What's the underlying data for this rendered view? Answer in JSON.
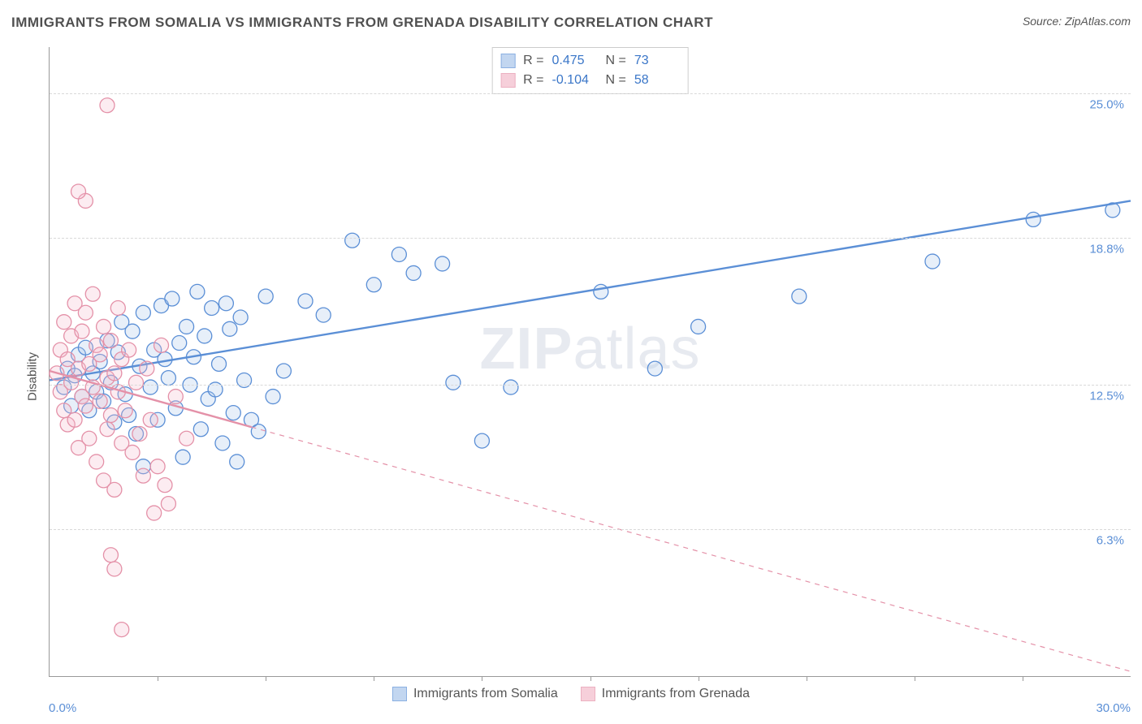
{
  "title": "IMMIGRANTS FROM SOMALIA VS IMMIGRANTS FROM GRENADA DISABILITY CORRELATION CHART",
  "source_label": "Source:",
  "source_name": "ZipAtlas.com",
  "ylabel": "Disability",
  "watermark_bold": "ZIP",
  "watermark_rest": "atlas",
  "chart": {
    "type": "scatter",
    "xlim": [
      0,
      30
    ],
    "ylim": [
      0,
      27
    ],
    "xticks_minor": [
      3,
      6,
      9,
      12,
      15,
      18,
      21,
      24,
      27
    ],
    "xaxis_min_label": "0.0%",
    "xaxis_max_label": "30.0%",
    "ygrid": [
      {
        "y": 6.3,
        "label": "6.3%"
      },
      {
        "y": 12.5,
        "label": "12.5%"
      },
      {
        "y": 18.8,
        "label": "18.8%"
      },
      {
        "y": 25.0,
        "label": "25.0%"
      }
    ],
    "background_color": "#ffffff",
    "grid_color": "#d8d8d8",
    "axis_color": "#999999",
    "marker_radius": 9,
    "marker_stroke_width": 1.3,
    "marker_fill_opacity": 0.28,
    "line_width": 2.4,
    "series": [
      {
        "name": "Immigrants from Somalia",
        "color_stroke": "#5b8fd6",
        "color_fill": "#a9c5ea",
        "R": "0.475",
        "N": "73",
        "regression": {
          "x1": 0,
          "y1": 12.7,
          "x2": 30,
          "y2": 20.4,
          "dashed": false
        },
        "points": [
          [
            0.4,
            12.4
          ],
          [
            0.5,
            13.2
          ],
          [
            0.6,
            11.6
          ],
          [
            0.7,
            12.9
          ],
          [
            0.8,
            13.8
          ],
          [
            0.9,
            12.0
          ],
          [
            1.0,
            14.1
          ],
          [
            1.1,
            11.4
          ],
          [
            1.2,
            13.0
          ],
          [
            1.3,
            12.2
          ],
          [
            1.4,
            13.5
          ],
          [
            1.5,
            11.8
          ],
          [
            1.6,
            14.4
          ],
          [
            1.7,
            12.6
          ],
          [
            1.8,
            10.9
          ],
          [
            1.9,
            13.9
          ],
          [
            2.0,
            15.2
          ],
          [
            2.1,
            12.1
          ],
          [
            2.2,
            11.2
          ],
          [
            2.3,
            14.8
          ],
          [
            2.4,
            10.4
          ],
          [
            2.5,
            13.3
          ],
          [
            2.6,
            15.6
          ],
          [
            2.6,
            9.0
          ],
          [
            2.8,
            12.4
          ],
          [
            2.9,
            14.0
          ],
          [
            3.0,
            11.0
          ],
          [
            3.1,
            15.9
          ],
          [
            3.2,
            13.6
          ],
          [
            3.3,
            12.8
          ],
          [
            3.4,
            16.2
          ],
          [
            3.5,
            11.5
          ],
          [
            3.6,
            14.3
          ],
          [
            3.7,
            9.4
          ],
          [
            3.8,
            15.0
          ],
          [
            3.9,
            12.5
          ],
          [
            4.0,
            13.7
          ],
          [
            4.1,
            16.5
          ],
          [
            4.2,
            10.6
          ],
          [
            4.3,
            14.6
          ],
          [
            4.4,
            11.9
          ],
          [
            4.5,
            15.8
          ],
          [
            4.6,
            12.3
          ],
          [
            4.7,
            13.4
          ],
          [
            4.8,
            10.0
          ],
          [
            4.9,
            16.0
          ],
          [
            5.0,
            14.9
          ],
          [
            5.1,
            11.3
          ],
          [
            5.2,
            9.2
          ],
          [
            5.3,
            15.4
          ],
          [
            5.4,
            12.7
          ],
          [
            5.6,
            11.0
          ],
          [
            5.8,
            10.5
          ],
          [
            6.0,
            16.3
          ],
          [
            6.2,
            12.0
          ],
          [
            6.5,
            13.1
          ],
          [
            7.1,
            16.1
          ],
          [
            7.6,
            15.5
          ],
          [
            8.4,
            18.7
          ],
          [
            9.0,
            16.8
          ],
          [
            9.7,
            18.1
          ],
          [
            10.1,
            17.3
          ],
          [
            10.9,
            17.7
          ],
          [
            11.2,
            12.6
          ],
          [
            12.0,
            10.1
          ],
          [
            12.8,
            12.4
          ],
          [
            15.3,
            16.5
          ],
          [
            16.8,
            13.2
          ],
          [
            18.0,
            15.0
          ],
          [
            20.8,
            16.3
          ],
          [
            24.5,
            17.8
          ],
          [
            27.3,
            19.6
          ],
          [
            29.5,
            20.0
          ]
        ]
      },
      {
        "name": "Immigrants from Grenada",
        "color_stroke": "#e491a8",
        "color_fill": "#f3bccb",
        "R": "-0.104",
        "N": "58",
        "regression": {
          "x1": 0,
          "y1": 13.1,
          "x2": 30,
          "y2": 0.2,
          "dashed_from_x": 5.6
        },
        "points": [
          [
            0.2,
            13.0
          ],
          [
            0.3,
            12.2
          ],
          [
            0.3,
            14.0
          ],
          [
            0.4,
            11.4
          ],
          [
            0.4,
            15.2
          ],
          [
            0.5,
            13.6
          ],
          [
            0.5,
            10.8
          ],
          [
            0.6,
            12.6
          ],
          [
            0.6,
            14.6
          ],
          [
            0.7,
            11.0
          ],
          [
            0.7,
            16.0
          ],
          [
            0.8,
            13.2
          ],
          [
            0.8,
            9.8
          ],
          [
            0.9,
            12.0
          ],
          [
            0.9,
            14.8
          ],
          [
            1.0,
            11.6
          ],
          [
            1.0,
            15.6
          ],
          [
            1.1,
            13.4
          ],
          [
            1.1,
            10.2
          ],
          [
            1.2,
            12.4
          ],
          [
            1.2,
            16.4
          ],
          [
            1.3,
            14.2
          ],
          [
            1.3,
            9.2
          ],
          [
            1.4,
            11.8
          ],
          [
            1.4,
            13.8
          ],
          [
            1.5,
            15.0
          ],
          [
            1.5,
            8.4
          ],
          [
            1.6,
            12.8
          ],
          [
            1.6,
            10.6
          ],
          [
            1.7,
            14.4
          ],
          [
            1.7,
            11.2
          ],
          [
            1.8,
            13.0
          ],
          [
            1.8,
            8.0
          ],
          [
            1.9,
            12.2
          ],
          [
            1.9,
            15.8
          ],
          [
            2.0,
            10.0
          ],
          [
            2.0,
            13.6
          ],
          [
            2.1,
            11.4
          ],
          [
            2.2,
            14.0
          ],
          [
            2.3,
            9.6
          ],
          [
            2.4,
            12.6
          ],
          [
            2.5,
            10.4
          ],
          [
            2.6,
            8.6
          ],
          [
            2.7,
            13.2
          ],
          [
            2.8,
            11.0
          ],
          [
            3.0,
            9.0
          ],
          [
            3.1,
            14.2
          ],
          [
            3.3,
            7.4
          ],
          [
            3.5,
            12.0
          ],
          [
            3.8,
            10.2
          ],
          [
            1.0,
            20.4
          ],
          [
            0.8,
            20.8
          ],
          [
            1.6,
            24.5
          ],
          [
            1.7,
            5.2
          ],
          [
            1.8,
            4.6
          ],
          [
            2.0,
            2.0
          ],
          [
            2.9,
            7.0
          ],
          [
            3.2,
            8.2
          ]
        ]
      }
    ]
  },
  "legend_top": {
    "R_label": "R",
    "N_label": "N",
    "eq": "="
  }
}
